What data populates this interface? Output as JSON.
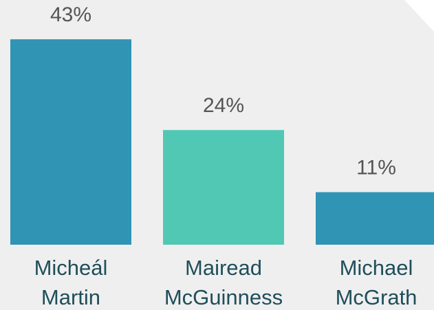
{
  "chart_data": {
    "type": "bar",
    "categories": [
      "Micheál Martin",
      "Mairead McGuinness",
      "Michael McGrath"
    ],
    "values": [
      43,
      24,
      11
    ],
    "value_labels": [
      "43%",
      "24%",
      "11%"
    ],
    "colors": [
      "#3094b4",
      "#50c8b4",
      "#3094b4"
    ]
  }
}
